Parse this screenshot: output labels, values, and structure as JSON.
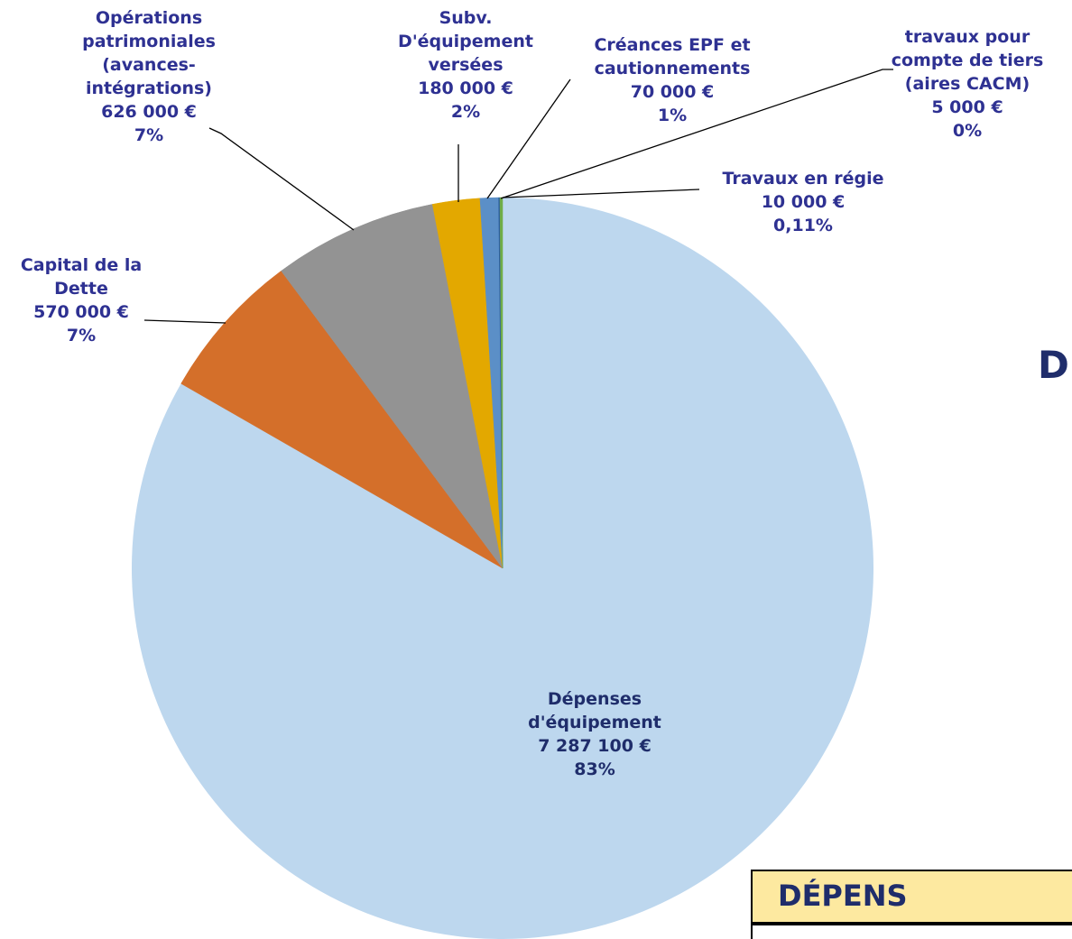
{
  "chart_data": {
    "type": "pie",
    "categories": [
      "Dépenses\nd'équipement",
      "Capital de la\nDette",
      "Opérations\npatrimoniales\n(avances-\nintégrations)",
      "Subv.\nD'équipement\nversées",
      "Créances EPF et\ncautionnements",
      "travaux pour\ncompte de tiers\n(aires CACM)",
      "Travaux en régie"
    ],
    "values": [
      7287100,
      570000,
      626000,
      180000,
      70000,
      5000,
      10000
    ],
    "value_labels": [
      "7 287 100 €",
      "570 000 €",
      "626 000 €",
      "180 000 €",
      "70 000 €",
      "5 000 €",
      "10 000 €"
    ],
    "percent_labels": [
      "83%",
      "7%",
      "7%",
      "2%",
      "1%",
      "0%",
      "0,11%"
    ],
    "colors": [
      "#bdd7ee",
      "#d46f2a",
      "#939393",
      "#e3a800",
      "#5b8fc7",
      "#2e5f9e",
      "#70ad47"
    ]
  },
  "side_heading": "D",
  "table_header": "DÉPENS"
}
